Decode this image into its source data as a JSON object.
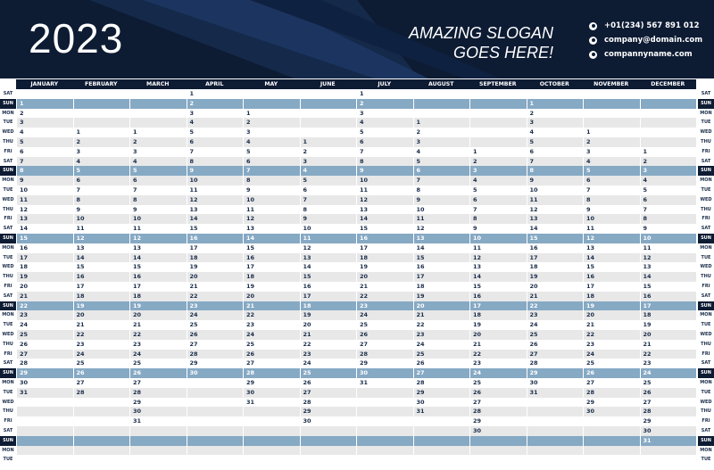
{
  "header": {
    "year": "2023",
    "slogan_line1": "AMAZING SLOGAN",
    "slogan_line2": "GOES HERE!",
    "contacts": [
      {
        "icon": "phone-icon",
        "text": "+01(234) 567 891 012"
      },
      {
        "icon": "email-icon",
        "text": "company@domain.com"
      },
      {
        "icon": "web-icon",
        "text": "compannyname.com"
      }
    ],
    "colors": {
      "navy": "#0d1b33",
      "sunday_band": "#86a9c4",
      "alt_row": "#e8e8e8"
    }
  },
  "months": [
    "JANUARY",
    "FEBRUARY",
    "MARCH",
    "APRIL",
    "MAY",
    "JUNE",
    "JULY",
    "AUGUST",
    "SEPTEMBER",
    "OCTOBER",
    "NOVEMBER",
    "DECEMBER"
  ],
  "month_start_offsets": [
    1,
    4,
    4,
    0,
    2,
    5,
    0,
    3,
    6,
    1,
    4,
    6
  ],
  "month_lengths": [
    31,
    28,
    31,
    30,
    31,
    30,
    31,
    31,
    30,
    31,
    30,
    31
  ],
  "weekday_labels": [
    "SAT",
    "SUN",
    "MON",
    "TUE",
    "WED",
    "THU",
    "FRI"
  ]
}
